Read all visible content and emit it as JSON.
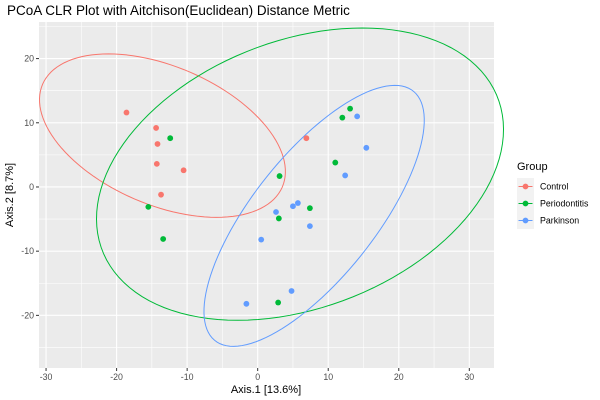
{
  "chart_data": {
    "type": "scatter",
    "title": "PCoA CLR Plot with Aitchison(Euclidean) Distance Metric",
    "xlabel": "Axis.1   [13.6%]",
    "ylabel": "Axis.2   [8.7%]",
    "xlim": [
      -31,
      33.5
    ],
    "ylim": [
      -28.2,
      25.7
    ],
    "x_ticks": [
      -30,
      -20,
      -10,
      0,
      10,
      20,
      30
    ],
    "y_ticks": [
      -20,
      -10,
      0,
      10,
      20
    ],
    "x_tick_labels": [
      "-30",
      "-20",
      "-10",
      "0",
      "10",
      "20",
      "30"
    ],
    "y_tick_labels": [
      "-20",
      "-10",
      "0",
      "10",
      "20"
    ],
    "grid": true,
    "legend_position": "right",
    "legend_title": "Group",
    "series": [
      {
        "name": "Control",
        "color": "#F8766D",
        "points": [
          [
            -18.6,
            11.6
          ],
          [
            -14.4,
            9.2
          ],
          [
            -14.2,
            6.7
          ],
          [
            -14.3,
            3.6
          ],
          [
            -13.7,
            -1.2
          ],
          [
            -10.5,
            2.6
          ],
          [
            6.9,
            7.6
          ]
        ],
        "ellipse": {
          "center": [
            -13.5,
            8.0
          ],
          "semi_axes": [
            18.8,
            10.6
          ],
          "rotation_deg": -27
        }
      },
      {
        "name": "Periodontitis",
        "color": "#00BA38",
        "points": [
          [
            -15.5,
            -3.1
          ],
          [
            -12.4,
            7.6
          ],
          [
            -13.4,
            -8.1
          ],
          [
            3.1,
            1.7
          ],
          [
            3.0,
            -4.9
          ],
          [
            7.4,
            -3.3
          ],
          [
            2.9,
            -18.0
          ],
          [
            11.0,
            3.8
          ],
          [
            12.0,
            10.8
          ],
          [
            13.1,
            12.2
          ]
        ],
        "ellipse": {
          "center": [
            6.0,
            2.0
          ],
          "semi_axes": [
            30.5,
            20.5
          ],
          "rotation_deg": 26
        }
      },
      {
        "name": "Parkinson",
        "color": "#619CFF",
        "points": [
          [
            -1.6,
            -18.2
          ],
          [
            0.5,
            -8.2
          ],
          [
            2.6,
            -3.9
          ],
          [
            5.0,
            -3.0
          ],
          [
            5.7,
            -2.5
          ],
          [
            7.4,
            -6.1
          ],
          [
            4.8,
            -16.2
          ],
          [
            12.4,
            1.8
          ],
          [
            14.1,
            11.0
          ],
          [
            15.4,
            6.1
          ]
        ],
        "ellipse": {
          "center": [
            8.0,
            -4.5
          ],
          "semi_axes": [
            24.0,
            9.0
          ],
          "rotation_deg": 55
        }
      }
    ]
  }
}
